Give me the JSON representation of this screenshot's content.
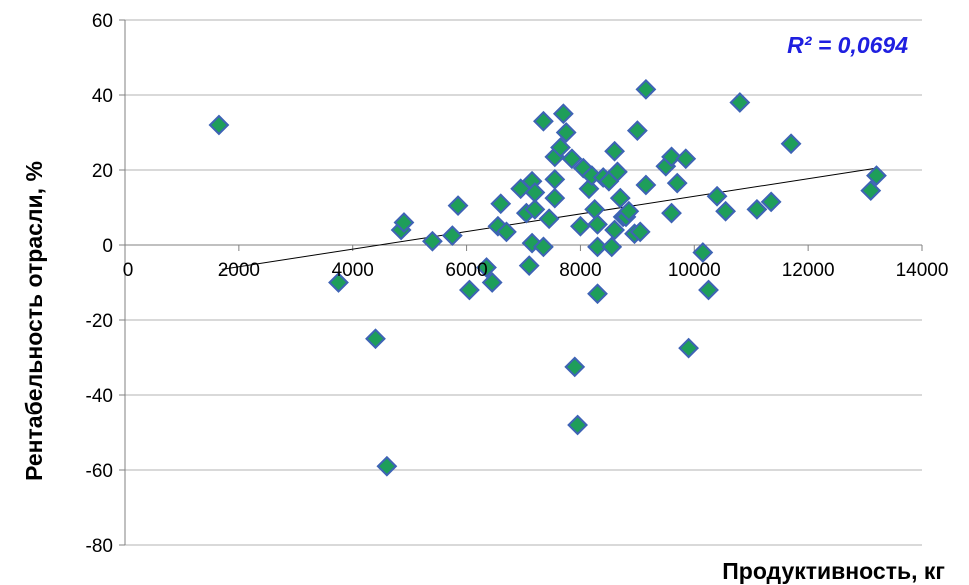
{
  "chart_data": {
    "type": "scatter",
    "xlabel": "Продуктивность,  кг",
    "ylabel": "Рентабельность   отрасли,  %",
    "xlim": [
      0,
      14000
    ],
    "ylim": [
      -80,
      60
    ],
    "x_ticks": [
      0,
      2000,
      4000,
      6000,
      8000,
      10000,
      12000,
      14000
    ],
    "y_ticks": [
      -80,
      -60,
      -40,
      -20,
      0,
      20,
      40,
      60
    ],
    "grid": {
      "horizontal": true,
      "vertical": false
    },
    "annotation": "R² = 0,0694",
    "trendline": {
      "type": "linear",
      "x": [
        1700,
        13200
      ],
      "y": [
        -6.5,
        20.5
      ]
    },
    "marker": {
      "shape": "diamond",
      "fill": "#1e9e5a",
      "stroke": "#3e63b5"
    },
    "colors": {
      "gridline": "#b3b3b3",
      "axis": "#808080",
      "trendline": "#000000",
      "annotation": "#1f1fe0"
    },
    "points": [
      [
        1650,
        32
      ],
      [
        3750,
        -10
      ],
      [
        4400,
        -25
      ],
      [
        4600,
        -59
      ],
      [
        4850,
        4
      ],
      [
        4900,
        6
      ],
      [
        5400,
        1
      ],
      [
        5750,
        2.5
      ],
      [
        5850,
        10.5
      ],
      [
        6050,
        -12
      ],
      [
        6350,
        -6
      ],
      [
        6450,
        -10
      ],
      [
        6550,
        5
      ],
      [
        6600,
        11
      ],
      [
        6700,
        3.5
      ],
      [
        6950,
        15
      ],
      [
        7050,
        8.5
      ],
      [
        7100,
        -5.5
      ],
      [
        7150,
        17
      ],
      [
        7150,
        0.5
      ],
      [
        7200,
        9.5
      ],
      [
        7200,
        14
      ],
      [
        7350,
        33
      ],
      [
        7350,
        -0.5
      ],
      [
        7450,
        7
      ],
      [
        7550,
        12.5
      ],
      [
        7550,
        17.5
      ],
      [
        7550,
        23.5
      ],
      [
        7650,
        26
      ],
      [
        7700,
        35
      ],
      [
        7750,
        30
      ],
      [
        7850,
        23
      ],
      [
        7900,
        -32.5
      ],
      [
        7950,
        -48
      ],
      [
        8000,
        5
      ],
      [
        8050,
        20.5
      ],
      [
        8150,
        15
      ],
      [
        8200,
        18.5
      ],
      [
        8250,
        9.5
      ],
      [
        8300,
        5.5
      ],
      [
        8300,
        -0.5
      ],
      [
        8300,
        -13
      ],
      [
        8400,
        18
      ],
      [
        8500,
        17
      ],
      [
        8550,
        -0.5
      ],
      [
        8600,
        4
      ],
      [
        8600,
        25
      ],
      [
        8650,
        19.5
      ],
      [
        8700,
        12.5
      ],
      [
        8750,
        7.5
      ],
      [
        8800,
        7.5
      ],
      [
        8850,
        9
      ],
      [
        8950,
        3
      ],
      [
        9000,
        30.5
      ],
      [
        9050,
        3.5
      ],
      [
        9150,
        41.5
      ],
      [
        9150,
        16
      ],
      [
        9500,
        21
      ],
      [
        9600,
        23.5
      ],
      [
        9600,
        8.5
      ],
      [
        9700,
        16.5
      ],
      [
        9850,
        23
      ],
      [
        9900,
        -27.5
      ],
      [
        10150,
        -2
      ],
      [
        10250,
        -12
      ],
      [
        10400,
        13
      ],
      [
        10550,
        9
      ],
      [
        10800,
        38
      ],
      [
        11100,
        9.5
      ],
      [
        11350,
        11.5
      ],
      [
        11700,
        27
      ],
      [
        13100,
        14.5
      ],
      [
        13200,
        18.5
      ]
    ]
  }
}
